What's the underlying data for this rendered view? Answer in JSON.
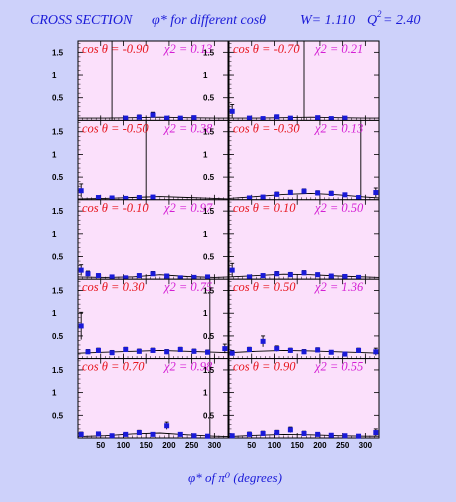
{
  "header": {
    "title_prefix": "CROSS SECTION",
    "title_phi": "φ*  for different  cosθ",
    "title_W": "W= 1.110",
    "title_Q2_label": "Q",
    "title_Q2_exp": "2",
    "title_Q2_value": "= 2.40"
  },
  "colors": {
    "background": "#cdd1fa",
    "panel_fill": "#fbe0fb",
    "cos_label": "#e8151d",
    "chi2_label": "#d41fd4",
    "marker": "#1a1ad8",
    "axis_text": "#1a1ad8",
    "curve": "#000000"
  },
  "chart_data": {
    "type": "scatter",
    "layout": {
      "rows": 5,
      "cols": 2
    },
    "xlabel": "φ* of π⁰ (degrees)",
    "x_ticks": [
      50,
      100,
      150,
      200,
      250,
      300
    ],
    "xlim": [
      0,
      330
    ],
    "ylim": [
      0,
      1.75
    ],
    "y_ticks": [
      "0.5",
      "1",
      "1.5"
    ],
    "panels": [
      {
        "cos_label": "cos θ = -0.90",
        "chi2_label": "χ2 = 0.13",
        "vline": 75,
        "points": [
          {
            "x": 105,
            "y": 0.05,
            "e": 0.04
          },
          {
            "x": 135,
            "y": 0.07,
            "e": 0.05
          },
          {
            "x": 165,
            "y": 0.12,
            "e": 0.06
          },
          {
            "x": 195,
            "y": 0.05,
            "e": 0.03
          },
          {
            "x": 225,
            "y": 0.05,
            "e": 0.03
          },
          {
            "x": 255,
            "y": 0.06,
            "e": 0.04
          }
        ],
        "curve": [
          [
            0,
            0.05
          ],
          [
            60,
            0.05
          ],
          [
            120,
            0.06
          ],
          [
            180,
            0.07
          ],
          [
            240,
            0.06
          ],
          [
            300,
            0.05
          ],
          [
            330,
            0.05
          ]
        ]
      },
      {
        "cos_label": "cos θ = -0.70",
        "chi2_label": "χ2 = 0.21",
        "vline": 165,
        "points": [
          {
            "x": 7,
            "y": 0.2,
            "e": 0.15
          },
          {
            "x": 45,
            "y": 0.05,
            "e": 0.03
          },
          {
            "x": 75,
            "y": 0.04,
            "e": 0.03
          },
          {
            "x": 105,
            "y": 0.08,
            "e": 0.04
          },
          {
            "x": 135,
            "y": 0.05,
            "e": 0.03
          },
          {
            "x": 195,
            "y": 0.06,
            "e": 0.03
          },
          {
            "x": 225,
            "y": 0.04,
            "e": 0.03
          },
          {
            "x": 255,
            "y": 0.05,
            "e": 0.03
          }
        ],
        "curve": [
          [
            0,
            0.05
          ],
          [
            60,
            0.05
          ],
          [
            120,
            0.06
          ],
          [
            180,
            0.07
          ],
          [
            240,
            0.06
          ],
          [
            300,
            0.05
          ],
          [
            330,
            0.05
          ]
        ]
      },
      {
        "cos_label": "cos θ = -0.50",
        "chi2_label": "χ2 = 0.38",
        "vline": 150,
        "points": [
          {
            "x": 7,
            "y": 0.2,
            "e": 0.15
          },
          {
            "x": 45,
            "y": 0.05,
            "e": 0.03
          },
          {
            "x": 75,
            "y": 0.04,
            "e": 0.03
          },
          {
            "x": 105,
            "y": 0.03,
            "e": 0.02
          },
          {
            "x": 135,
            "y": 0.05,
            "e": 0.03
          },
          {
            "x": 165,
            "y": 0.06,
            "e": 0.03
          }
        ],
        "curve": [
          [
            0,
            0.02
          ],
          [
            60,
            0.03
          ],
          [
            120,
            0.05
          ],
          [
            180,
            0.07
          ],
          [
            240,
            0.05
          ],
          [
            300,
            0.03
          ],
          [
            330,
            0.02
          ]
        ]
      },
      {
        "cos_label": "cos θ = -0.30",
        "chi2_label": "χ2 = 0.13",
        "vline": 290,
        "points": [
          {
            "x": 45,
            "y": 0.04,
            "e": 0.03
          },
          {
            "x": 75,
            "y": 0.06,
            "e": 0.03
          },
          {
            "x": 105,
            "y": 0.12,
            "e": 0.05
          },
          {
            "x": 135,
            "y": 0.16,
            "e": 0.05
          },
          {
            "x": 165,
            "y": 0.19,
            "e": 0.05
          },
          {
            "x": 195,
            "y": 0.15,
            "e": 0.05
          },
          {
            "x": 225,
            "y": 0.14,
            "e": 0.05
          },
          {
            "x": 255,
            "y": 0.11,
            "e": 0.04
          },
          {
            "x": 285,
            "y": 0.05,
            "e": 0.03
          },
          {
            "x": 323,
            "y": 0.16,
            "e": 0.1
          }
        ],
        "curve": [
          [
            0,
            0.03
          ],
          [
            60,
            0.07
          ],
          [
            120,
            0.12
          ],
          [
            180,
            0.14
          ],
          [
            240,
            0.11
          ],
          [
            300,
            0.06
          ],
          [
            330,
            0.04
          ]
        ]
      },
      {
        "cos_label": "cos θ = -0.10",
        "chi2_label": "χ2 = 0.97",
        "vline": null,
        "points": [
          {
            "x": 7,
            "y": 0.2,
            "e": 0.12
          },
          {
            "x": 22,
            "y": 0.12,
            "e": 0.06
          },
          {
            "x": 45,
            "y": 0.08,
            "e": 0.04
          },
          {
            "x": 75,
            "y": 0.05,
            "e": 0.03
          },
          {
            "x": 105,
            "y": 0.03,
            "e": 0.02
          },
          {
            "x": 135,
            "y": 0.08,
            "e": 0.04
          },
          {
            "x": 165,
            "y": 0.12,
            "e": 0.05
          },
          {
            "x": 195,
            "y": 0.07,
            "e": 0.04
          },
          {
            "x": 225,
            "y": 0.03,
            "e": 0.03
          },
          {
            "x": 255,
            "y": 0.04,
            "e": 0.03
          },
          {
            "x": 285,
            "y": 0.05,
            "e": 0.03
          }
        ],
        "curve": [
          [
            0,
            0.05
          ],
          [
            60,
            0.04
          ],
          [
            120,
            0.05
          ],
          [
            180,
            0.1
          ],
          [
            240,
            0.06
          ],
          [
            300,
            0.04
          ],
          [
            330,
            0.05
          ]
        ]
      },
      {
        "cos_label": "cos θ = 0.10",
        "chi2_label": "χ2 = 0.50",
        "vline": null,
        "points": [
          {
            "x": 7,
            "y": 0.2,
            "e": 0.15
          },
          {
            "x": 45,
            "y": 0.05,
            "e": 0.03
          },
          {
            "x": 75,
            "y": 0.08,
            "e": 0.04
          },
          {
            "x": 105,
            "y": 0.12,
            "e": 0.05
          },
          {
            "x": 135,
            "y": 0.1,
            "e": 0.05
          },
          {
            "x": 165,
            "y": 0.14,
            "e": 0.05
          },
          {
            "x": 195,
            "y": 0.1,
            "e": 0.04
          },
          {
            "x": 225,
            "y": 0.07,
            "e": 0.03
          },
          {
            "x": 255,
            "y": 0.06,
            "e": 0.03
          },
          {
            "x": 285,
            "y": 0.04,
            "e": 0.03
          }
        ],
        "curve": [
          [
            0,
            0.05
          ],
          [
            60,
            0.08
          ],
          [
            120,
            0.11
          ],
          [
            180,
            0.1
          ],
          [
            240,
            0.07
          ],
          [
            300,
            0.05
          ],
          [
            330,
            0.04
          ]
        ]
      },
      {
        "cos_label": "cos θ = 0.30",
        "chi2_label": "χ2 = 0.75",
        "vline": 290,
        "points": [
          {
            "x": 7,
            "y": 0.72,
            "e": 0.3
          },
          {
            "x": 22,
            "y": 0.15,
            "e": 0.05
          },
          {
            "x": 45,
            "y": 0.18,
            "e": 0.05
          },
          {
            "x": 75,
            "y": 0.13,
            "e": 0.05
          },
          {
            "x": 105,
            "y": 0.2,
            "e": 0.05
          },
          {
            "x": 135,
            "y": 0.16,
            "e": 0.05
          },
          {
            "x": 165,
            "y": 0.18,
            "e": 0.05
          },
          {
            "x": 195,
            "y": 0.15,
            "e": 0.05
          },
          {
            "x": 225,
            "y": 0.2,
            "e": 0.05
          },
          {
            "x": 255,
            "y": 0.16,
            "e": 0.05
          },
          {
            "x": 285,
            "y": 0.14,
            "e": 0.05
          },
          {
            "x": 323,
            "y": 0.22,
            "e": 0.1
          }
        ],
        "curve": [
          [
            0,
            0.12
          ],
          [
            60,
            0.14
          ],
          [
            120,
            0.16
          ],
          [
            180,
            0.18
          ],
          [
            240,
            0.16
          ],
          [
            300,
            0.14
          ],
          [
            330,
            0.13
          ]
        ]
      },
      {
        "cos_label": "cos θ = 0.50",
        "chi2_label": "χ2 = 1.36",
        "vline": null,
        "points": [
          {
            "x": 7,
            "y": 0.12,
            "e": 0.06
          },
          {
            "x": 45,
            "y": 0.2,
            "e": 0.05
          },
          {
            "x": 75,
            "y": 0.38,
            "e": 0.12
          },
          {
            "x": 105,
            "y": 0.22,
            "e": 0.06
          },
          {
            "x": 135,
            "y": 0.18,
            "e": 0.05
          },
          {
            "x": 165,
            "y": 0.15,
            "e": 0.05
          },
          {
            "x": 195,
            "y": 0.19,
            "e": 0.05
          },
          {
            "x": 225,
            "y": 0.14,
            "e": 0.04
          },
          {
            "x": 255,
            "y": 0.1,
            "e": 0.04
          },
          {
            "x": 285,
            "y": 0.18,
            "e": 0.05
          },
          {
            "x": 323,
            "y": 0.15,
            "e": 0.08
          }
        ],
        "curve": [
          [
            0,
            0.13
          ],
          [
            60,
            0.16
          ],
          [
            120,
            0.18
          ],
          [
            180,
            0.17
          ],
          [
            240,
            0.15
          ],
          [
            300,
            0.13
          ],
          [
            330,
            0.12
          ]
        ]
      },
      {
        "cos_label": "cos θ = 0.70",
        "chi2_label": "χ2 = 0.98",
        "vline": 290,
        "points": [
          {
            "x": 7,
            "y": 0.08,
            "e": 0.05
          },
          {
            "x": 45,
            "y": 0.09,
            "e": 0.04
          },
          {
            "x": 75,
            "y": 0.05,
            "e": 0.03
          },
          {
            "x": 105,
            "y": 0.08,
            "e": 0.04
          },
          {
            "x": 135,
            "y": 0.12,
            "e": 0.05
          },
          {
            "x": 165,
            "y": 0.08,
            "e": 0.04
          },
          {
            "x": 195,
            "y": 0.27,
            "e": 0.08
          },
          {
            "x": 225,
            "y": 0.08,
            "e": 0.04
          },
          {
            "x": 255,
            "y": 0.05,
            "e": 0.03
          },
          {
            "x": 285,
            "y": 0.04,
            "e": 0.03
          }
        ],
        "curve": [
          [
            0,
            0.03
          ],
          [
            60,
            0.05
          ],
          [
            120,
            0.09
          ],
          [
            180,
            0.11
          ],
          [
            240,
            0.07
          ],
          [
            300,
            0.04
          ],
          [
            330,
            0.03
          ]
        ]
      },
      {
        "cos_label": "cos θ = 0.90",
        "chi2_label": "χ2 = 0.55",
        "vline": null,
        "points": [
          {
            "x": 7,
            "y": 0.05,
            "e": 0.04
          },
          {
            "x": 45,
            "y": 0.08,
            "e": 0.05
          },
          {
            "x": 75,
            "y": 0.1,
            "e": 0.05
          },
          {
            "x": 105,
            "y": 0.12,
            "e": 0.05
          },
          {
            "x": 135,
            "y": 0.18,
            "e": 0.06
          },
          {
            "x": 165,
            "y": 0.1,
            "e": 0.05
          },
          {
            "x": 195,
            "y": 0.08,
            "e": 0.04
          },
          {
            "x": 225,
            "y": 0.06,
            "e": 0.03
          },
          {
            "x": 255,
            "y": 0.05,
            "e": 0.03
          },
          {
            "x": 285,
            "y": 0.04,
            "e": 0.03
          },
          {
            "x": 323,
            "y": 0.12,
            "e": 0.08
          }
        ],
        "curve": [
          [
            0,
            0.03
          ],
          [
            60,
            0.06
          ],
          [
            120,
            0.08
          ],
          [
            180,
            0.07
          ],
          [
            240,
            0.05
          ],
          [
            300,
            0.04
          ],
          [
            330,
            0.04
          ]
        ]
      }
    ]
  }
}
